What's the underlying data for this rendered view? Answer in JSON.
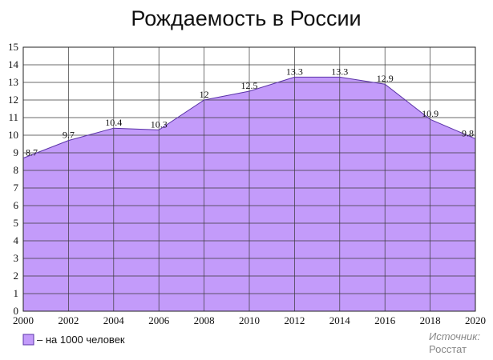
{
  "chart_data": {
    "type": "area",
    "title": "Рождаемость в России",
    "x": [
      2000,
      2002,
      2004,
      2006,
      2008,
      2010,
      2012,
      2014,
      2016,
      2018,
      2020
    ],
    "x_ticks": [
      "2000",
      "2002",
      "2004",
      "2006",
      "2008",
      "2010",
      "2012",
      "2014",
      "2016",
      "2018",
      "2020"
    ],
    "y_ticks": [
      "0",
      "1",
      "2",
      "3",
      "4",
      "5",
      "6",
      "7",
      "8",
      "9",
      "10",
      "11",
      "12",
      "13",
      "14",
      "15"
    ],
    "xlim": [
      2000,
      2020
    ],
    "ylim": [
      0,
      15
    ],
    "grid": true,
    "series": [
      {
        "name": "– на 1000 человек",
        "values": [
          8.7,
          9.7,
          10.4,
          10.3,
          12,
          12.5,
          13.3,
          13.3,
          12.9,
          10.9,
          9.8
        ],
        "labels": [
          "8.7",
          "9.7",
          "10.4",
          "10.3",
          "12",
          "12.5",
          "13.3",
          "13.3",
          "12.9",
          "10.9",
          "9.8"
        ],
        "color": "#c39bfa",
        "line_color": "#5b34a8"
      }
    ],
    "legend": "bottom-left"
  },
  "source": {
    "label": "Источник:",
    "value": "Росстат"
  }
}
